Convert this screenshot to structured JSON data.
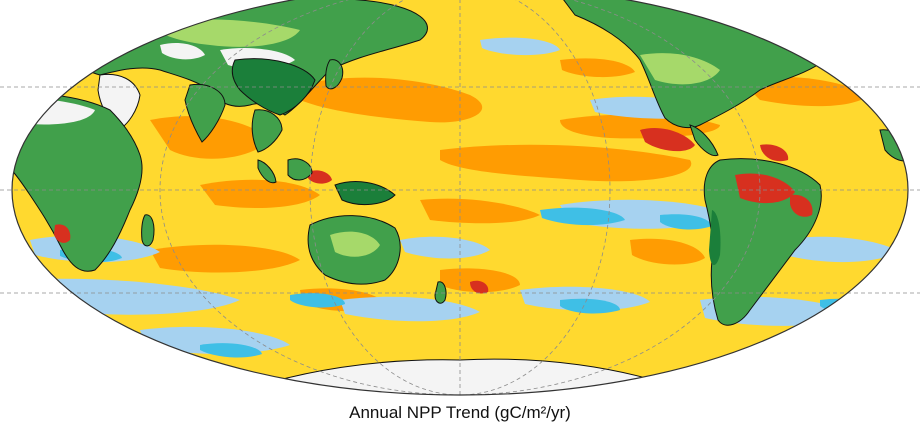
{
  "caption": "Annual NPP Trend (gC/m²/yr)",
  "map": {
    "projection": "mollweide",
    "central_longitude": 180,
    "graticule": true,
    "colors": {
      "ocean_decrease_strong": "#d7301f",
      "ocean_decrease": "#ff9900",
      "ocean_slight_decrease": "#ffd92f",
      "ocean_slight_increase": "#a6d2f0",
      "ocean_increase": "#3fbfe6",
      "land_increase_light": "#a6d96a",
      "land_increase": "#41a04b",
      "land_increase_strong": "#1b7f3a",
      "land_decrease": "#d7301f",
      "no_data": "#f4f4f4",
      "coastline": "#111111",
      "graticule": "#8c8c8c"
    }
  }
}
